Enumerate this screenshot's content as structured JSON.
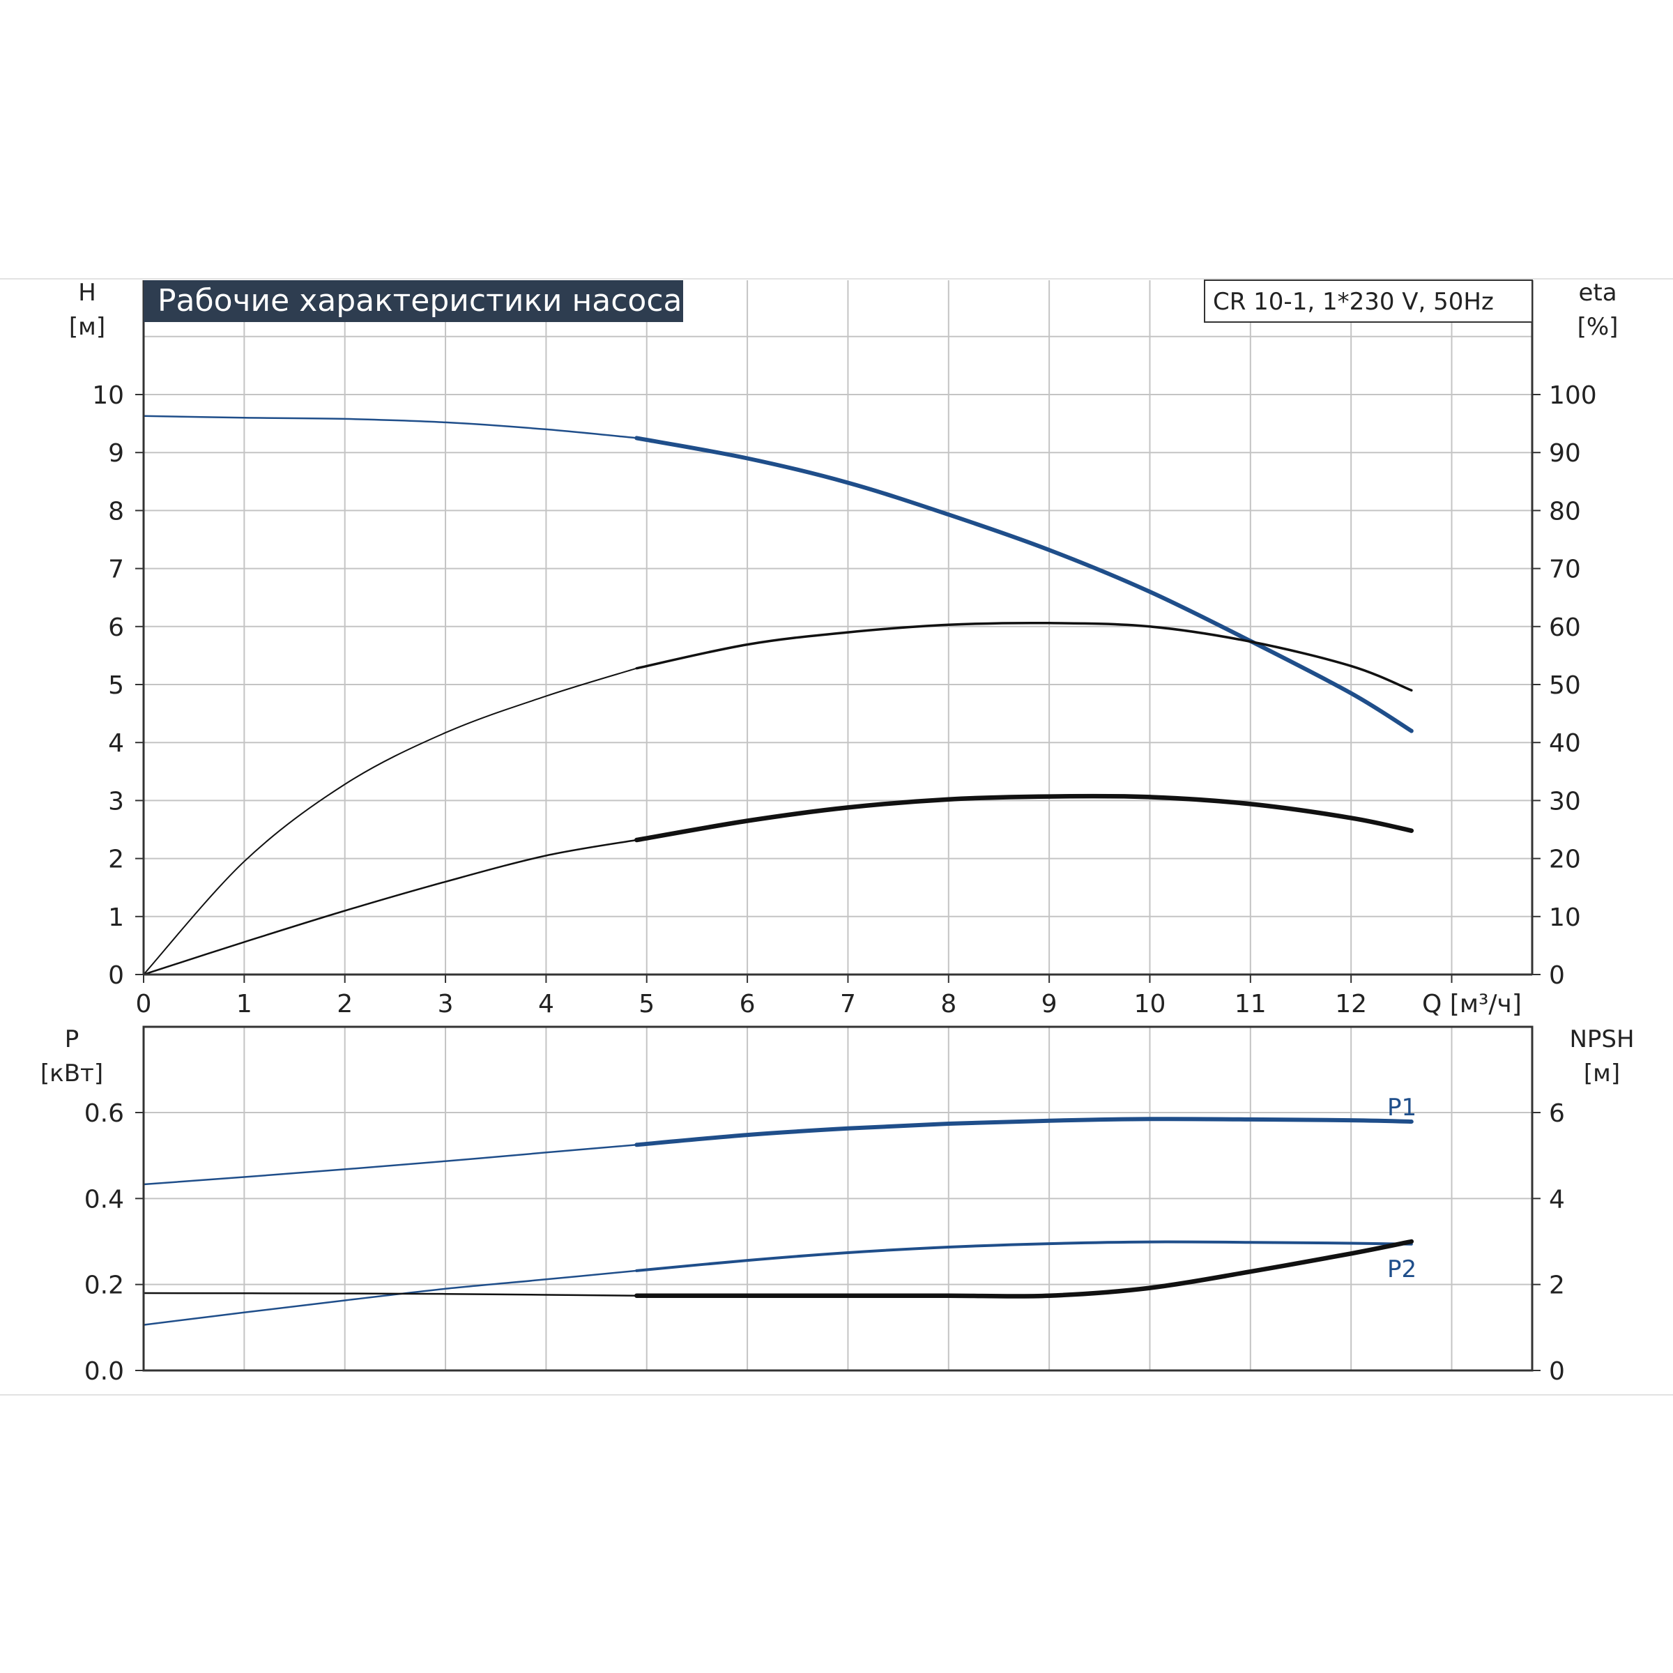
{
  "colors": {
    "blue": "#1f4e8a",
    "black": "#111111",
    "grid": "#c4c4c4",
    "title_bg": "#2e3d50"
  },
  "chart_data": [
    {
      "type": "line",
      "title": "Рабочие характеристики насоса",
      "model": "CR 10-1, 1*230 V, 50Hz",
      "left_axis": {
        "label": "H",
        "unit": "[м]",
        "ylim": [
          0,
          10
        ],
        "ticks": [
          "0",
          "1",
          "2",
          "3",
          "4",
          "5",
          "6",
          "7",
          "8",
          "9",
          "10"
        ]
      },
      "right_axis": {
        "label": "eta",
        "unit": "[%]",
        "ylim": [
          0,
          100
        ],
        "ticks": [
          "0",
          "10",
          "20",
          "30",
          "40",
          "50",
          "60",
          "70",
          "80",
          "90",
          "100"
        ]
      },
      "x_axis": {
        "label": "Q [м³/ч]",
        "xlim": [
          0,
          13.8
        ],
        "ticks": [
          "0",
          "1",
          "2",
          "3",
          "4",
          "5",
          "6",
          "7",
          "8",
          "9",
          "10",
          "11",
          "12"
        ]
      },
      "grid": true,
      "operating_range_start": 4.9,
      "series": [
        {
          "key": "H",
          "axis": "left",
          "color": "blue",
          "x": [
            0,
            1,
            2,
            3,
            4,
            4.9,
            6,
            7,
            8,
            9,
            10,
            11,
            12,
            12.6
          ],
          "y": [
            9.63,
            9.6,
            9.58,
            9.52,
            9.4,
            9.25,
            8.9,
            8.48,
            7.93,
            7.32,
            6.6,
            5.75,
            4.85,
            4.2
          ]
        },
        {
          "key": "eta",
          "axis": "right",
          "color": "black",
          "x": [
            0,
            1,
            2,
            3,
            4,
            4.9,
            6,
            7,
            8,
            9,
            10,
            11,
            12,
            12.6
          ],
          "y": [
            0,
            19.5,
            32.8,
            41.7,
            48,
            52.8,
            56.9,
            59,
            60.3,
            60.6,
            60,
            57.4,
            53.2,
            49
          ]
        },
        {
          "key": "eta_total",
          "axis": "right",
          "color": "black",
          "bold": true,
          "x": [
            0,
            1,
            2,
            3,
            4,
            4.9,
            6,
            7,
            8,
            9,
            10,
            11,
            12,
            12.6
          ],
          "y": [
            0,
            5.6,
            11,
            16,
            20.5,
            23.2,
            26.5,
            28.8,
            30.2,
            30.7,
            30.6,
            29.4,
            27,
            24.8
          ]
        }
      ]
    },
    {
      "type": "line",
      "left_axis": {
        "label": "P",
        "unit": "[кВт]",
        "ylim": [
          0,
          0.8
        ],
        "ticks": [
          "0.0",
          "0.2",
          "0.4",
          "0.6"
        ]
      },
      "right_axis": {
        "label": "NPSH",
        "unit": "[м]",
        "ylim": [
          0,
          8
        ],
        "ticks": [
          "0",
          "2",
          "4",
          "6"
        ]
      },
      "xlim": [
        0,
        13.8
      ],
      "grid": true,
      "series": [
        {
          "name": "P1",
          "axis": "left",
          "color": "blue",
          "x": [
            0,
            1,
            2,
            3,
            4,
            4.9,
            6,
            7,
            8,
            9,
            10,
            11,
            12,
            12.6
          ],
          "y": [
            0.433,
            0.45,
            0.468,
            0.487,
            0.507,
            0.525,
            0.548,
            0.563,
            0.574,
            0.581,
            0.585,
            0.584,
            0.582,
            0.579
          ]
        },
        {
          "name": "P2",
          "axis": "left",
          "color": "blue",
          "x": [
            0,
            1,
            2,
            3,
            4,
            4.9,
            6,
            7,
            8,
            9,
            10,
            11,
            12,
            12.6
          ],
          "y": [
            0.106,
            0.135,
            0.163,
            0.19,
            0.212,
            0.232,
            0.256,
            0.274,
            0.287,
            0.295,
            0.299,
            0.298,
            0.296,
            0.294
          ]
        },
        {
          "key": "NPSH",
          "axis": "right",
          "color": "black",
          "x": [
            0,
            2,
            3,
            4,
            4.9,
            6,
            7,
            8,
            9,
            10,
            11,
            12,
            12.6
          ],
          "y": [
            1.8,
            1.79,
            1.78,
            1.76,
            1.74,
            1.74,
            1.74,
            1.74,
            1.74,
            1.92,
            2.3,
            2.72,
            3.0
          ]
        }
      ]
    }
  ]
}
